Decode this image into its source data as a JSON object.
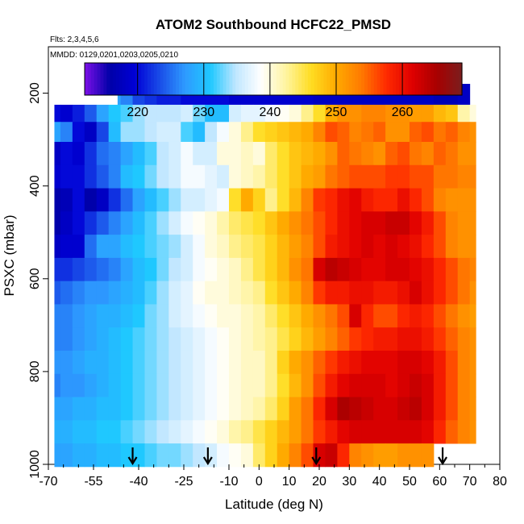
{
  "chart_data": {
    "type": "heatmap",
    "title": "ATOM2 Southbound HCFC22_PMSD",
    "flights_note": "Flts: 2,3,4,5,6",
    "dates_note": "MMDD: 0129,0201,0203,0205,0210",
    "xlabel": "Latitude (deg N)",
    "ylabel": "PSXC (mbar)",
    "xlim": [
      -70,
      80
    ],
    "ylim": [
      1000,
      100
    ],
    "x_ticks": [
      -70,
      -55,
      -40,
      -25,
      -10,
      0,
      10,
      20,
      30,
      40,
      50,
      60,
      70,
      80
    ],
    "x_minor_ticks": [
      -65,
      -60,
      -50,
      -45,
      -35,
      -30,
      -20,
      -15,
      -5,
      5,
      15,
      25,
      35,
      45,
      55,
      65,
      75
    ],
    "y_ticks": [
      200,
      400,
      600,
      800,
      1000
    ],
    "grid": false,
    "colorbar": {
      "min": 212,
      "max": 269,
      "ticks": [
        220,
        230,
        240,
        250,
        260
      ],
      "placement": "top",
      "colors": [
        "#7d10e8",
        "#0000a8",
        "#0000d6",
        "#1a4ee8",
        "#2e9bff",
        "#1fc8ff",
        "#bfe6ff",
        "#ffffff",
        "#fff4a0",
        "#ffdd22",
        "#ffaa00",
        "#ff7a00",
        "#ff2a00",
        "#e00000",
        "#a80000",
        "#7a1e1e"
      ]
    },
    "band_lats": [
      -68,
      -64,
      -60,
      -56,
      -52,
      -48,
      -44,
      -40,
      -36,
      -32,
      -28,
      -24,
      -20,
      -16,
      -12,
      -8,
      -4,
      0,
      4,
      8,
      12,
      16,
      20,
      24,
      28,
      32,
      36,
      40,
      44,
      48,
      52,
      56,
      60,
      64,
      68,
      72
    ],
    "bands": [
      {
        "p_top": 180,
        "p_bot": 225,
        "lat_min": -47,
        "lat_max": 70,
        "values": [
          null,
          null,
          null,
          null,
          null,
          228,
          226,
          223,
          222,
          221,
          221,
          220,
          220,
          220,
          220,
          219,
          219,
          219,
          219,
          219,
          219,
          219,
          218,
          218,
          218,
          218,
          218,
          218,
          218,
          218,
          218,
          218,
          217,
          217,
          218,
          218
        ]
      },
      {
        "p_top": 225,
        "p_bot": 262,
        "lat_min": -68,
        "lat_max": 72,
        "values": [
          220,
          219,
          221,
          224,
          228,
          231,
          232,
          234,
          235,
          235,
          235,
          236,
          233,
          230,
          230,
          236,
          237,
          237,
          238,
          239,
          240,
          243,
          246,
          250,
          252,
          252,
          253,
          253,
          252,
          252,
          251,
          251,
          249,
          248,
          242,
          240
        ]
      },
      {
        "p_top": 262,
        "p_bot": 305,
        "lat_min": -68,
        "lat_max": 72,
        "values": [
          228,
          226,
          220,
          218,
          223,
          230,
          234,
          234,
          235,
          236,
          236,
          232,
          230,
          235,
          238,
          240,
          243,
          246,
          247,
          248,
          249,
          250,
          253,
          256,
          255,
          253,
          254,
          255,
          252,
          252,
          255,
          256,
          254,
          255,
          253,
          252
        ]
      },
      {
        "p_top": 305,
        "p_bot": 355,
        "lat_min": -68,
        "lat_max": 72,
        "values": [
          218,
          220,
          219,
          222,
          225,
          226,
          228,
          230,
          232,
          235,
          236,
          238,
          236,
          236,
          240,
          240,
          241,
          240,
          244,
          246,
          248,
          249,
          250,
          252,
          255,
          254,
          253,
          252,
          255,
          256,
          254,
          253,
          255,
          254,
          252,
          252
        ]
      },
      {
        "p_top": 355,
        "p_bot": 405,
        "lat_min": -68,
        "lat_max": 72,
        "values": [
          219,
          220,
          220,
          222,
          224,
          226,
          230,
          231,
          233,
          235,
          236,
          238,
          238,
          237,
          236,
          240,
          241,
          242,
          244,
          246,
          248,
          250,
          251,
          254,
          255,
          256,
          256,
          256,
          257,
          257,
          256,
          256,
          254,
          254,
          253,
          253
        ]
      },
      {
        "p_top": 405,
        "p_bot": 455,
        "lat_min": -68,
        "lat_max": 72,
        "values": [
          216,
          217,
          220,
          216,
          218,
          222,
          225,
          228,
          230,
          232,
          234,
          236,
          236,
          237,
          238,
          246,
          250,
          247,
          243,
          246,
          249,
          253,
          257,
          258,
          260,
          261,
          259,
          258,
          258,
          260,
          258,
          256,
          253,
          252,
          252,
          252
        ]
      },
      {
        "p_top": 455,
        "p_bot": 505,
        "lat_min": -68,
        "lat_max": 72,
        "values": [
          216,
          218,
          220,
          222,
          224,
          226,
          228,
          230,
          232,
          234,
          236,
          238,
          239,
          240,
          242,
          244,
          245,
          246,
          248,
          250,
          252,
          254,
          256,
          258,
          260,
          261,
          262,
          262,
          263,
          263,
          261,
          259,
          256,
          253,
          252,
          252
        ]
      },
      {
        "p_top": 505,
        "p_bot": 555,
        "lat_min": -68,
        "lat_max": 72,
        "values": [
          218,
          219,
          219,
          225,
          228,
          228,
          230,
          231,
          232,
          233,
          234,
          236,
          238,
          240,
          241,
          243,
          244,
          245,
          247,
          249,
          251,
          253,
          256,
          259,
          260,
          261,
          262,
          261,
          262,
          261,
          260,
          258,
          256,
          253,
          252,
          252
        ]
      },
      {
        "p_top": 555,
        "p_bot": 605,
        "lat_min": -68,
        "lat_max": 72,
        "values": [
          222,
          222,
          223,
          224,
          225,
          226,
          228,
          230,
          231,
          233,
          235,
          236,
          238,
          239,
          240,
          241,
          243,
          245,
          247,
          249,
          252,
          254,
          262,
          264,
          263,
          262,
          261,
          261,
          262,
          262,
          261,
          260,
          258,
          256,
          254,
          253
        ]
      },
      {
        "p_top": 605,
        "p_bot": 655,
        "lat_min": -68,
        "lat_max": 72,
        "values": [
          224,
          225,
          226,
          227,
          227,
          228,
          229,
          230,
          232,
          234,
          236,
          237,
          239,
          240,
          240,
          241,
          242,
          243,
          246,
          248,
          250,
          253,
          257,
          259,
          259,
          260,
          260,
          259,
          259,
          260,
          262,
          260,
          258,
          256,
          254,
          252
        ]
      },
      {
        "p_top": 655,
        "p_bot": 705,
        "lat_min": -68,
        "lat_max": 72,
        "values": [
          226,
          226,
          227,
          228,
          229,
          229,
          230,
          231,
          233,
          234,
          236,
          237,
          238,
          239,
          240,
          240,
          241,
          242,
          244,
          246,
          248,
          250,
          252,
          254,
          256,
          262,
          258,
          256,
          256,
          258,
          259,
          258,
          256,
          254,
          252,
          251
        ]
      },
      {
        "p_top": 705,
        "p_bot": 755,
        "lat_min": -68,
        "lat_max": 72,
        "values": [
          226,
          226,
          227,
          228,
          229,
          230,
          231,
          232,
          233,
          234,
          235,
          236,
          237,
          238,
          239,
          240,
          241,
          242,
          243,
          245,
          247,
          249,
          251,
          253,
          255,
          257,
          258,
          259,
          259,
          260,
          260,
          259,
          257,
          255,
          253,
          252
        ]
      },
      {
        "p_top": 755,
        "p_bot": 805,
        "lat_min": -68,
        "lat_max": 72,
        "values": [
          227,
          227,
          228,
          229,
          229,
          230,
          231,
          232,
          233,
          234,
          235,
          236,
          237,
          238,
          239,
          240,
          241,
          241,
          243,
          247,
          250,
          252,
          255,
          257,
          259,
          260,
          261,
          261,
          261,
          262,
          262,
          261,
          259,
          256,
          253,
          252
        ]
      },
      {
        "p_top": 805,
        "p_bot": 855,
        "lat_min": -68,
        "lat_max": 72,
        "values": [
          226,
          227,
          227,
          228,
          229,
          230,
          231,
          232,
          233,
          234,
          235,
          236,
          237,
          238,
          239,
          240,
          241,
          241,
          243,
          246,
          249,
          252,
          256,
          259,
          261,
          262,
          262,
          262,
          261,
          262,
          263,
          262,
          259,
          256,
          253,
          252
        ]
      },
      {
        "p_top": 855,
        "p_bot": 905,
        "lat_min": -68,
        "lat_max": 72,
        "values": [
          228,
          228,
          229,
          229,
          230,
          230,
          231,
          232,
          233,
          234,
          235,
          236,
          237,
          238,
          239,
          240,
          241,
          242,
          244,
          247,
          251,
          254,
          258,
          262,
          265,
          264,
          263,
          262,
          262,
          263,
          264,
          262,
          259,
          256,
          253,
          252
        ]
      },
      {
        "p_top": 905,
        "p_bot": 955,
        "lat_min": -68,
        "lat_max": 72,
        "values": [
          229,
          229,
          230,
          230,
          231,
          231,
          232,
          233,
          234,
          235,
          236,
          237,
          238,
          239,
          240,
          242,
          243,
          245,
          247,
          249,
          251,
          254,
          257,
          259,
          261,
          262,
          262,
          262,
          262,
          262,
          262,
          261,
          258,
          255,
          253,
          252
        ]
      },
      {
        "p_top": 955,
        "p_bot": 1005,
        "lat_min": -68,
        "lat_max": 72,
        "values": [
          228,
          228,
          229,
          229,
          230,
          230,
          231,
          231,
          232,
          233,
          233,
          234,
          235,
          236,
          238,
          239,
          240,
          244,
          247,
          250,
          253,
          256,
          262,
          263,
          258,
          253,
          252,
          251,
          251,
          252,
          252,
          252,
          null,
          null,
          null,
          null
        ]
      }
    ],
    "annotations": [
      {
        "type": "arrow",
        "x": -42,
        "label": ""
      },
      {
        "type": "arrow",
        "x": -17,
        "label": ""
      },
      {
        "type": "arrow",
        "x": 19,
        "label": ""
      },
      {
        "type": "arrow",
        "x": 61,
        "label": ""
      }
    ]
  }
}
